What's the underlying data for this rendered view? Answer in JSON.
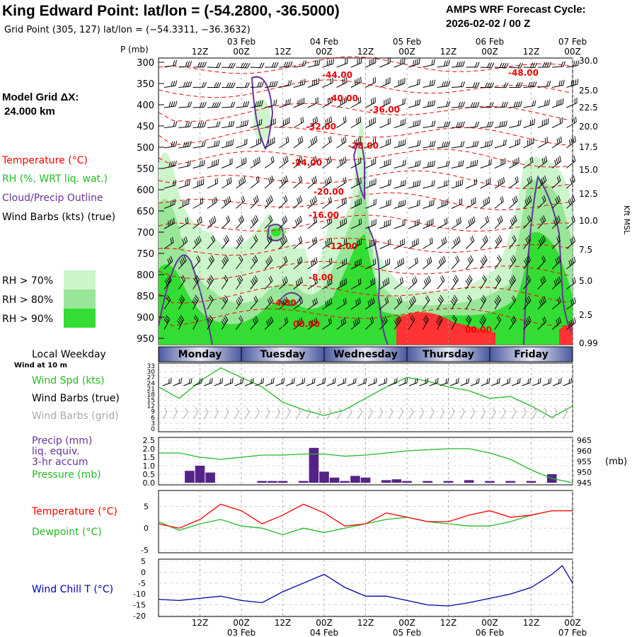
{
  "header": {
    "title": "King Edward Point:  lat/lon = (-54.2800, -36.5000)",
    "grid_point": "Grid Point (305, 127) lat/lon = (−54.3311, −36.3632)",
    "cycle_label": "AMPS WRF Forecast Cycle:",
    "cycle_value": "2026-02-02 / 00  Z",
    "grid_dx_label": "Model Grid ΔX:",
    "grid_dx_value": "24.000 km"
  },
  "colors": {
    "temperature": "#ff0000",
    "rh": "#22bb22",
    "cloud_outline": "#663399",
    "wind": "#000000",
    "wind_grid": "#aaaaaa",
    "wind_chill": "#0000aa",
    "dewpoint": "#22bb22",
    "precip": "#552288",
    "pressure": "#22bb22",
    "weekday_bar": "#4a5aa0",
    "rh70": "#ccf5cc",
    "rh80": "#99e699",
    "rh90": "#33dd33"
  },
  "time_axis": {
    "ticks": [
      "12Z",
      "00Z",
      "12Z",
      "00Z",
      "12Z",
      "00Z",
      "12Z",
      "00Z",
      "12Z",
      "00Z"
    ],
    "dates": [
      "03 Feb",
      "04 Feb",
      "05 Feb",
      "06 Feb",
      "07 Feb"
    ],
    "weekday_title": "Local Weekday",
    "wind_height": "Wind at 10 m",
    "weekdays": [
      "Monday",
      "Tuesday",
      "Wednesday",
      "Thursday",
      "Friday"
    ]
  },
  "chart_data": [
    {
      "type": "heatmap",
      "title": "Time-height cross section",
      "ylabel": "P (mb)",
      "y2label": "Kft MSL",
      "ylim": [
        300,
        950
      ],
      "pressure_ticks": [
        "300",
        "350",
        "400",
        "450",
        "500",
        "550",
        "600",
        "650",
        "700",
        "750",
        "800",
        "850",
        "900",
        "950"
      ],
      "height_ticks": [
        "30.0",
        "25.0",
        "22.5",
        "20.0",
        "17.5",
        "15.0",
        "12.5",
        "10.0",
        "7.5",
        "5.0",
        "2.5",
        "0.99"
      ],
      "legend": {
        "temperature": "Temperature (°C)",
        "rh": "RH (%, WRT liq. wat.)",
        "cloud": "Cloud/Precip Outline",
        "wind": "Wind Barbs (kts) (true)",
        "rh_levels": [
          "RH > 70%",
          "RH > 80%",
          "RH > 90%"
        ]
      },
      "isotherm_labels": [
        "-48.00",
        "-44.00",
        "-40.00",
        "-36.00",
        "-32.00",
        "-28.00",
        "-24.00",
        "-20.00",
        "-16.00",
        "-12.00",
        "-8.00",
        "-4.00",
        "00.00",
        "00.00"
      ]
    },
    {
      "type": "line",
      "title": "Wind Spd (kts)",
      "labels": {
        "speed": "Wind Spd (kts)",
        "barbs_true": "Wind Barbs (true)",
        "barbs_grid": "Wind Barbs (grid)"
      },
      "ylim": [
        0,
        33
      ],
      "y_ticks": [
        "33",
        "30",
        "27",
        "24",
        "21",
        "18",
        "15",
        "12",
        "9",
        "6",
        "3",
        "0"
      ],
      "x_hours": [
        0,
        6,
        12,
        18,
        24,
        30,
        36,
        42,
        48,
        54,
        60,
        66,
        72,
        78,
        84,
        90,
        96,
        102,
        108,
        114,
        120
      ],
      "values": [
        22,
        16,
        25,
        32,
        27,
        22,
        14,
        10,
        7,
        10,
        16,
        22,
        27,
        25,
        22,
        20,
        16,
        17,
        12,
        6,
        12
      ]
    },
    {
      "type": "bar",
      "title": "Precip (mm) liq. equiv. 3-hr accum / Pressure (mb)",
      "labels": [
        "Precip (mm)",
        "liq. equiv.",
        "3-hr accum",
        "Pressure (mb)"
      ],
      "y2label": "(mb)",
      "ylim": [
        0,
        2.5
      ],
      "y_ticks": [
        "2.5",
        "2.0",
        "1.5",
        "1.0",
        "0.5",
        "0.0"
      ],
      "y2lim": [
        945,
        965
      ],
      "y2_ticks": [
        "965",
        "960",
        "955",
        "950",
        "945"
      ],
      "precip_hours": [
        9,
        12,
        15,
        30,
        33,
        36,
        42,
        45,
        48,
        51,
        54,
        57,
        60,
        66,
        69,
        72,
        78,
        84,
        90,
        96,
        102,
        108,
        114
      ],
      "precip_values": [
        0.7,
        1.0,
        0.6,
        0.1,
        0.1,
        0.1,
        0.1,
        2.05,
        0.65,
        0.3,
        0.1,
        0.4,
        0.3,
        0.15,
        0.2,
        0.1,
        0.1,
        0.1,
        0.15,
        0.1,
        0.1,
        0.1,
        0.5
      ],
      "pressure_hours": [
        0,
        6,
        12,
        18,
        24,
        30,
        36,
        42,
        48,
        54,
        60,
        66,
        72,
        78,
        84,
        90,
        96,
        102,
        108,
        114,
        120
      ],
      "pressure_values": [
        959,
        959,
        957,
        956,
        957,
        958,
        958,
        958.5,
        958.5,
        957.5,
        958,
        959,
        960,
        960.5,
        961,
        961,
        959,
        956,
        951,
        947,
        945
      ]
    },
    {
      "type": "line",
      "title": "Temperature / Dewpoint",
      "labels": {
        "temp": "Temperature (°C)",
        "dew": "Dewpoint (°C)"
      },
      "ylim": [
        -5,
        8
      ],
      "y_ticks": [
        "5",
        "0",
        "-5"
      ],
      "x_hours": [
        0,
        6,
        12,
        18,
        24,
        30,
        36,
        42,
        48,
        54,
        60,
        66,
        72,
        78,
        84,
        90,
        96,
        102,
        108,
        114,
        120
      ],
      "temperature": [
        1,
        0,
        2,
        5.5,
        4,
        1,
        3,
        5.5,
        3.5,
        0.5,
        1,
        3.5,
        2.5,
        1.5,
        1.5,
        3,
        4,
        2.5,
        3,
        4,
        4
      ],
      "dewpoint": [
        1.5,
        -0.5,
        1,
        2,
        0.5,
        0,
        -1.5,
        0,
        -1,
        0,
        1,
        2,
        2.5,
        1.5,
        1,
        0.5,
        0.5,
        1.5,
        3,
        4,
        4
      ]
    },
    {
      "type": "line",
      "title": "Wind Chill T (°C)",
      "labels": {
        "chill": "Wind Chill T (°C)"
      },
      "ylim": [
        -20,
        5
      ],
      "y_ticks": [
        "5",
        "0",
        "-5",
        "-10",
        "-15",
        "-20"
      ],
      "x_hours": [
        0,
        6,
        12,
        18,
        24,
        30,
        36,
        42,
        48,
        54,
        60,
        66,
        72,
        78,
        84,
        90,
        96,
        102,
        108,
        114,
        117,
        120
      ],
      "values": [
        -12.5,
        -13,
        -12,
        -11,
        -13,
        -14,
        -9,
        -5,
        -1,
        -7,
        -11,
        -11,
        -13,
        -15,
        -15.5,
        -14,
        -12,
        -10,
        -7,
        -1,
        3,
        -5
      ]
    }
  ]
}
